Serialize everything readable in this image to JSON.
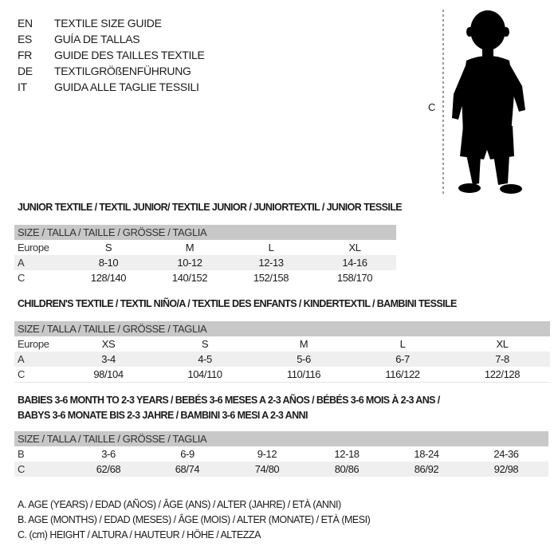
{
  "languages": [
    {
      "code": "EN",
      "label": "TEXTILE SIZE GUIDE"
    },
    {
      "code": "ES",
      "label": "GUÍA DE TALLAS"
    },
    {
      "code": "FR",
      "label": "GUIDE DES TAILLES TEXTILE"
    },
    {
      "code": "DE",
      "label": "TEXTILGRÖßENFÜHRUNG"
    },
    {
      "code": "IT",
      "label": "GUIDA ALLE TAGLIE TESSILI"
    }
  ],
  "figure": {
    "height_marker": "C",
    "icon": "child-silhouette-icon"
  },
  "header_label": "SIZE / TALLA / TAILLE / GRÖSSE / TAGLIA",
  "junior": {
    "title": "JUNIOR TEXTILE / TEXTIL JUNIOR/ TEXTILE JUNIOR / JUNIORTEXTIL / JUNIOR TESSILE",
    "rows": [
      {
        "label": "Europe",
        "values": [
          "S",
          "M",
          "L",
          "XL"
        ]
      },
      {
        "label": "A",
        "values": [
          "8-10",
          "10-12",
          "12-13",
          "14-16"
        ]
      },
      {
        "label": "C",
        "values": [
          "128/140",
          "140/152",
          "152/158",
          "158/170"
        ]
      }
    ]
  },
  "children": {
    "title": "CHILDREN'S TEXTILE / TEXTIL NIÑO/A / TEXTILE DES ENFANTS / KINDERTEXTIL / BAMBINI TESSILE",
    "rows": [
      {
        "label": "Europe",
        "values": [
          "XS",
          "S",
          "M",
          "L",
          "XL"
        ]
      },
      {
        "label": "A",
        "values": [
          "3-4",
          "4-5",
          "5-6",
          "6-7",
          "7-8"
        ]
      },
      {
        "label": "C",
        "values": [
          "98/104",
          "104/110",
          "110/116",
          "116/122",
          "122/128"
        ]
      }
    ]
  },
  "babies": {
    "title_line1": "BABIES 3-6 MONTH TO 2-3 YEARS / BEBÉS 3-6 MESES A 2-3 AÑOS / BÉBÉS 3-6 MOIS À 2-3 ANS /",
    "title_line2": "BABYS 3-6 MONATE BIS 2-3 JAHRE / BAMBINI 3-6 MESI A 2-3 ANNI",
    "rows": [
      {
        "label": "B",
        "values": [
          "3-6",
          "6-9",
          "9-12",
          "12-18",
          "18-24",
          "24-36"
        ]
      },
      {
        "label": "C",
        "values": [
          "62/68",
          "68/74",
          "74/80",
          "80/86",
          "86/92",
          "92/98"
        ]
      }
    ]
  },
  "legend": [
    "A. AGE (YEARS) / EDAD (AÑOS) / ÂGE (ANS) / ALTER (JAHRE) / ETÀ (ANNI)",
    "B. AGE (MONTHS) / EDAD (MESES) / ÂGE (MOIS) / ALTER (MONATE) / ETÀ (MESI)",
    "C. (cm) HEIGHT / ALTURA / HAUTEUR / HÖHE / ALTEZZA"
  ]
}
